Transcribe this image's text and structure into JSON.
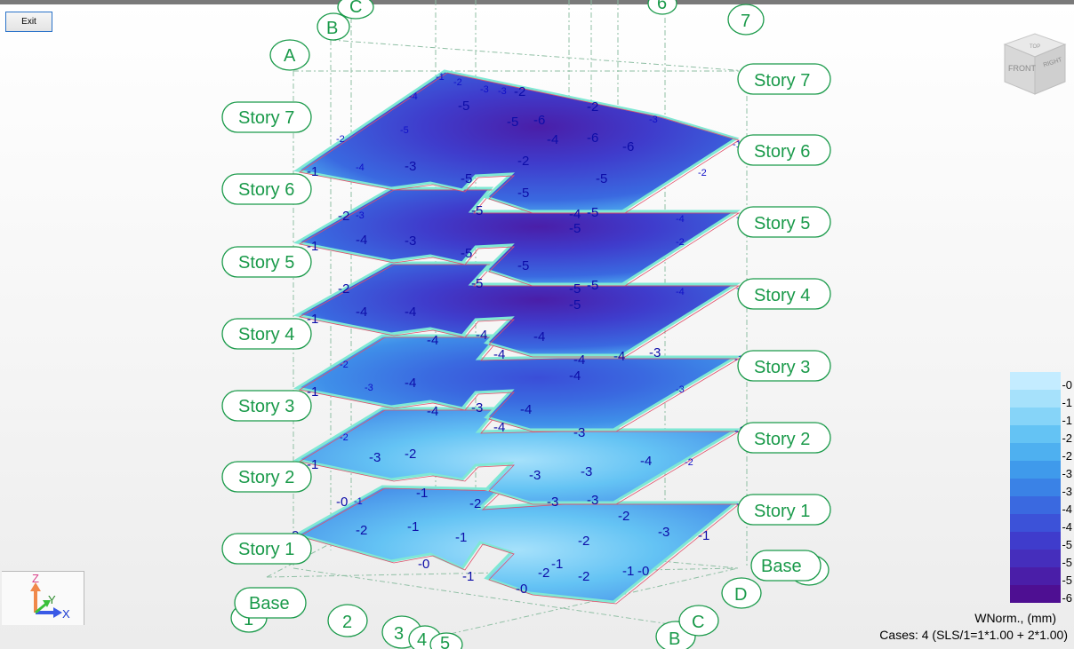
{
  "toolbar": {
    "exit_label": "Exit"
  },
  "grid_bubbles": [
    {
      "id": "A",
      "label": "A"
    },
    {
      "id": "B-top",
      "label": "B"
    },
    {
      "id": "C-top",
      "label": "C"
    },
    {
      "id": "6-top",
      "label": "6"
    },
    {
      "id": "7-top",
      "label": "7"
    },
    {
      "id": "1",
      "label": "1"
    },
    {
      "id": "2",
      "label": "2"
    },
    {
      "id": "3",
      "label": "3"
    },
    {
      "id": "4",
      "label": "4"
    },
    {
      "id": "5",
      "label": "5"
    },
    {
      "id": "B-bottom",
      "label": "B"
    },
    {
      "id": "C-bottom",
      "label": "C"
    },
    {
      "id": "D",
      "label": "D"
    },
    {
      "id": "E",
      "label": "E"
    }
  ],
  "story_labels_left": [
    "Story 7",
    "Story 6",
    "Story 5",
    "Story 4",
    "Story 3",
    "Story 2",
    "Story 1",
    "Base"
  ],
  "story_labels_right": [
    "Story 7",
    "Story 6",
    "Story 5",
    "Story 4",
    "Story 3",
    "Story 2",
    "Story 1",
    "Base"
  ],
  "viewcube": {
    "face_front": "FRONT",
    "face_right": "RIGHT",
    "face_top": "TOP"
  },
  "axis_triad": {
    "x": "X",
    "y": "Y",
    "z": "Z"
  },
  "legend": {
    "entries": [
      {
        "label": "-0",
        "color": "#c4ecff"
      },
      {
        "label": "-1",
        "color": "#a6e1fb"
      },
      {
        "label": "-1",
        "color": "#86d4f8"
      },
      {
        "label": "-2",
        "color": "#64c3f4"
      },
      {
        "label": "-2",
        "color": "#4eb0f0"
      },
      {
        "label": "-3",
        "color": "#3f9aeb"
      },
      {
        "label": "-3",
        "color": "#3a82e6"
      },
      {
        "label": "-4",
        "color": "#3a69e0"
      },
      {
        "label": "-4",
        "color": "#3c52d8"
      },
      {
        "label": "-5",
        "color": "#3f3ccc"
      },
      {
        "label": "-5",
        "color": "#452ebc"
      },
      {
        "label": "-5",
        "color": "#4a1ea8"
      },
      {
        "label": "-6",
        "color": "#4e0f92"
      }
    ],
    "quantity": "WNorm., (mm)",
    "cases": "Cases: 4 (SLS/1=1*1.00 + 2*1.00)"
  },
  "slab_colors": {
    "light": "#a6e1fb",
    "mid": "#4eb0f0",
    "deep": "#3a69e0",
    "deepest": "#3f3ccc",
    "edge": "#7fe8d4"
  },
  "contour_labels": {
    "story7": [
      "-1",
      "-2",
      "-3",
      "-3",
      "-2",
      "-4",
      "-4",
      "-5",
      "-5",
      "-5",
      "-5",
      "-6",
      "-6",
      "-5",
      "-3",
      "-2",
      "-3",
      "-2",
      "-3",
      "-4",
      "-5",
      "-5",
      "-5",
      "-6",
      "-6",
      "-4",
      "-6",
      "-5",
      "-5",
      "-5",
      "-4",
      "-3",
      "-1",
      "-1",
      "-3",
      "-4",
      "-4",
      "-4",
      "-3",
      "-3",
      "-4",
      "-2",
      "-5",
      "-5",
      "-6",
      "-5",
      "-5",
      "-5",
      "-4",
      "-3",
      "-2"
    ],
    "story6": [
      "-1",
      "-2",
      "-3",
      "-3",
      "-4",
      "-5",
      "-5",
      "-5",
      "-5",
      "-5",
      "-5",
      "-5",
      "-4",
      "-5",
      "-5",
      "-4",
      "-4",
      "-3",
      "-2",
      "-1",
      "-1",
      "-3",
      "-4",
      "-4",
      "-4",
      "-3",
      "-3",
      "-4",
      "-5",
      "-5",
      "-4",
      "-5",
      "-5",
      "-4",
      "-2",
      "-1"
    ],
    "story5": [
      "-1",
      "-2",
      "-2",
      "-3",
      "-4",
      "-5",
      "-5",
      "-5",
      "-5",
      "-5",
      "-5",
      "-5",
      "-3",
      "-3",
      "-4",
      "-5",
      "-5",
      "-5",
      "-5",
      "-4",
      "-4",
      "-3",
      "-2",
      "-1",
      "-1",
      "-3",
      "-4",
      "-4",
      "-4",
      "-3",
      "-3",
      "-4",
      "-5",
      "-4",
      "-4",
      "-3",
      "-2",
      "-1"
    ],
    "story4": [
      "-1",
      "-2",
      "-3",
      "-3",
      "-4",
      "-4",
      "-4",
      "-3",
      "-4",
      "-4",
      "-4",
      "-4",
      "-4",
      "-4",
      "-3",
      "-4",
      "-4",
      "-4",
      "-4",
      "-3",
      "-2",
      "-1",
      "-1",
      "-2",
      "-3",
      "-4",
      "-3",
      "-2",
      "-2",
      "-3",
      "-4",
      "-4",
      "-4",
      "-3",
      "-2"
    ],
    "story3": [
      "-1",
      "-2",
      "-2",
      "-3",
      "-3",
      "-3",
      "-3",
      "-2",
      "-3",
      "-4",
      "-3",
      "-3",
      "-3",
      "-4",
      "-3",
      "-4",
      "-3",
      "-3",
      "-2",
      "-1",
      "-1",
      "-2",
      "-2",
      "-3",
      "-3",
      "-3",
      "-2",
      "-3",
      "-3",
      "-3",
      "-2",
      "-3",
      "-4",
      "-4",
      "-3",
      "-2",
      "-1"
    ],
    "story2": [
      "-0",
      "-1",
      "-2",
      "-2",
      "-2",
      "-1",
      "-1",
      "-1",
      "-2",
      "-2",
      "-2",
      "-3",
      "-3",
      "-3",
      "-3",
      "-3",
      "-3",
      "-2",
      "-2",
      "-1",
      "-0",
      "-0",
      "-1",
      "-2",
      "-2",
      "-2",
      "-2",
      "-1",
      "-1",
      "-1",
      "-1",
      "-1",
      "-2",
      "-2",
      "-2",
      "-1",
      "-2",
      "-3",
      "-3",
      "-2",
      "-1",
      "-1"
    ],
    "story1": [
      "-0",
      "-1",
      "-1",
      "-2",
      "-1",
      "-1",
      "-2",
      "-2",
      "-2",
      "-2",
      "-2",
      "-2",
      "-2",
      "-1",
      "-0",
      "-0"
    ]
  }
}
